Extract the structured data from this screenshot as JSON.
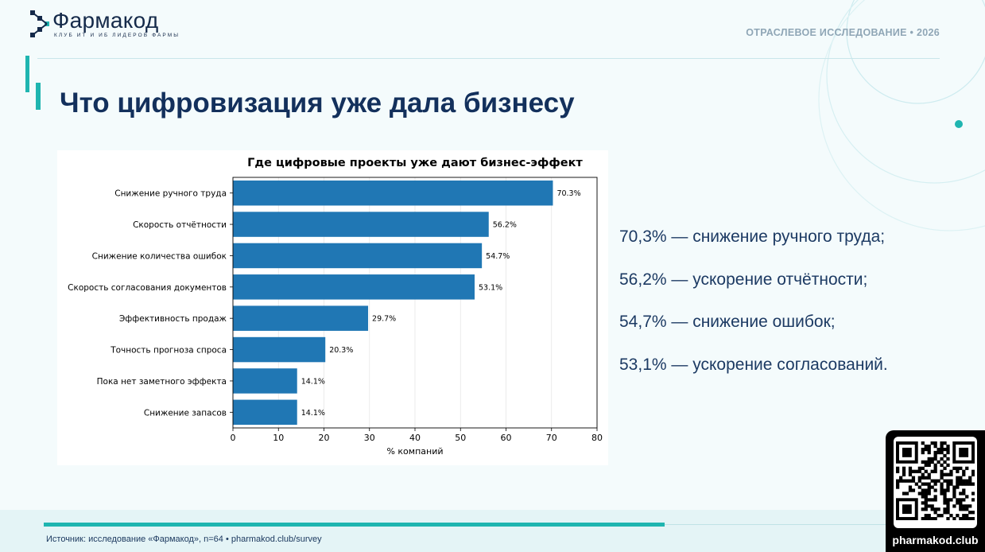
{
  "brand": {
    "name": "Фармакод",
    "tagline": "КЛУБ ИТ И ИБ ЛИДЕРОВ ФАРМЫ"
  },
  "header": {
    "label": "ОТРАСЛЕВОЕ ИССЛЕДОВАНИЕ • 2026"
  },
  "slide": {
    "title": "Что цифровизация уже дала бизнесу"
  },
  "chart_data": {
    "type": "bar",
    "orientation": "horizontal",
    "title": "Где цифровые проекты уже дают бизнес-эффект",
    "xlabel": "% компаний",
    "ylabel": "",
    "categories": [
      "Снижение ручного труда",
      "Скорость отчётности",
      "Снижение количества ошибок",
      "Скорость согласования документов",
      "Эффективность продаж",
      "Точность прогноза спроса",
      "Пока нет заметного эффекта",
      "Снижение запасов"
    ],
    "values": [
      70.3,
      56.2,
      54.7,
      53.1,
      29.7,
      20.3,
      14.1,
      14.1
    ],
    "data_labels": [
      "70.3%",
      "56.2%",
      "54.7%",
      "53.1%",
      "29.7%",
      "20.3%",
      "14.1%",
      "14.1%"
    ],
    "xlim": [
      0,
      80
    ],
    "xticks": [
      0,
      10,
      20,
      30,
      40,
      50,
      60,
      70,
      80
    ],
    "grid": "vertical",
    "bar_color": "#2077b4"
  },
  "highlights": [
    "70,3% — снижение ручного труда;",
    "56,2% — ускорение отчётности;",
    "54,7% — снижение ошибок;",
    "53,1% — ускорение согласований."
  ],
  "footer": {
    "source": "Источник: исследование «Фармакод», n=64 • pharmakod.club/survey",
    "qr_label": "pharmakod.club"
  },
  "colors": {
    "accent": "#1fb5b0",
    "title": "#13305c"
  }
}
